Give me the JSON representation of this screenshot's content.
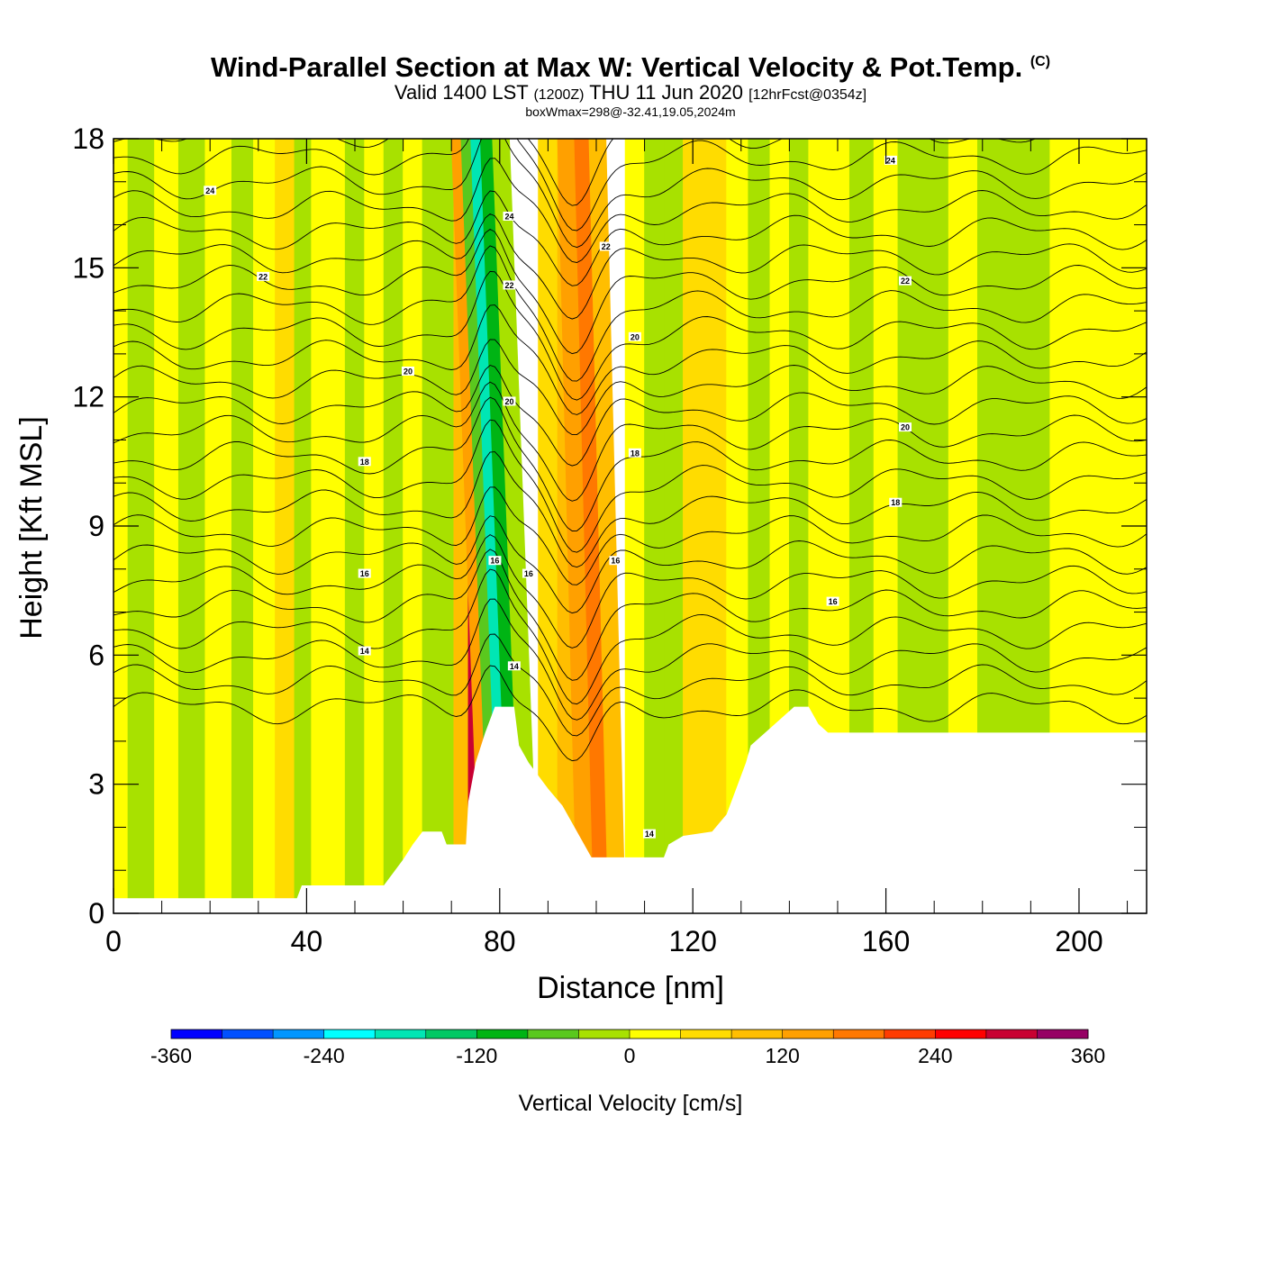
{
  "title": {
    "main": "Wind-Parallel Section at Max W: Vertical Velocity & Pot.Temp.",
    "copyright": "(C)",
    "valid_prefix": "Valid 1400 LST",
    "valid_utc": "(1200Z)",
    "valid_date": "THU 11 Jun 2020",
    "forecast": "[12hrFcst@0354z]",
    "box_info": "boxWmax=298@-32.41,19.05,2024m"
  },
  "chart_data": {
    "type": "heatmap",
    "xlabel": "Distance [nm]",
    "ylabel": "Height [Kft MSL]",
    "xlim": [
      0,
      214
    ],
    "ylim": [
      0,
      18
    ],
    "x_ticks": [
      0,
      40,
      80,
      120,
      160,
      200
    ],
    "x_tick_labels": [
      "0",
      "40",
      "80",
      "120",
      "160",
      "200"
    ],
    "y_ticks": [
      0,
      3,
      6,
      9,
      12,
      15,
      18
    ],
    "y_tick_labels": [
      "0",
      "3",
      "6",
      "9",
      "12",
      "15",
      "18"
    ],
    "colorbar": {
      "title": "Vertical Velocity [cm/s]",
      "levels": [
        -360,
        -330,
        -300,
        -270,
        -240,
        -210,
        -180,
        -150,
        -120,
        -90,
        -60,
        -30,
        0,
        30,
        60,
        90,
        120,
        150,
        180,
        210,
        240,
        270,
        300,
        330,
        360
      ],
      "colors": [
        "#0000ff",
        "#0050ff",
        "#0096ff",
        "#00ffff",
        "#00e6b4",
        "#00c864",
        "#00b414",
        "#5ac81e",
        "#a8e100",
        "#ffff00",
        "#ffdc00",
        "#ffbe00",
        "#ffa000",
        "#ff7800",
        "#ff3c00",
        "#ff0000",
        "#c80032",
        "#960064"
      ],
      "labels": [
        "-360",
        "-240",
        "-120",
        "0",
        "120",
        "240",
        "360"
      ]
    },
    "terrain_kft": [
      [
        0,
        0.35
      ],
      [
        38,
        0.35
      ],
      [
        39,
        0.65
      ],
      [
        56,
        0.65
      ],
      [
        58,
        0.95
      ],
      [
        60,
        1.25
      ],
      [
        62,
        1.6
      ],
      [
        64,
        1.9
      ],
      [
        68,
        1.9
      ],
      [
        69,
        1.6
      ],
      [
        73,
        1.6
      ],
      [
        73.5,
        2.6
      ],
      [
        75,
        3.5
      ],
      [
        77,
        4.2
      ],
      [
        79,
        4.8
      ],
      [
        83,
        4.8
      ],
      [
        84,
        3.9
      ],
      [
        86,
        3.5
      ],
      [
        88,
        3.2
      ],
      [
        90,
        2.9
      ],
      [
        93,
        2.5
      ],
      [
        95,
        2.1
      ],
      [
        97,
        1.7
      ],
      [
        99,
        1.3
      ],
      [
        107,
        1.3
      ],
      [
        114,
        1.3
      ],
      [
        115,
        1.6
      ],
      [
        118,
        1.8
      ],
      [
        124,
        1.9
      ],
      [
        127,
        2.3
      ],
      [
        129,
        2.9
      ],
      [
        131,
        3.5
      ],
      [
        132,
        3.9
      ],
      [
        135,
        4.2
      ],
      [
        138,
        4.5
      ],
      [
        141,
        4.8
      ],
      [
        144,
        4.8
      ],
      [
        146,
        4.4
      ],
      [
        148,
        4.2
      ],
      [
        214,
        4.2
      ]
    ],
    "w_columns": [
      {
        "x": 0,
        "w": 15
      },
      {
        "x": 6,
        "w": -25
      },
      {
        "x": 11,
        "w": 15
      },
      {
        "x": 16,
        "w": -20
      },
      {
        "x": 22,
        "w": 10
      },
      {
        "x": 27,
        "w": -30
      },
      {
        "x": 31,
        "w": 10
      },
      {
        "x": 36,
        "w": 30
      },
      {
        "x": 39,
        "w": -15
      },
      {
        "x": 43,
        "w": 5
      },
      {
        "x": 46,
        "w": 25
      },
      {
        "x": 50,
        "w": -20
      },
      {
        "x": 54,
        "w": 5
      },
      {
        "x": 58,
        "w": -15
      },
      {
        "x": 62,
        "w": 15
      },
      {
        "x": 66,
        "w": -50
      },
      {
        "x": 69,
        "w": -80
      },
      {
        "x": 72,
        "w": 60
      },
      {
        "x": 75,
        "w": 298
      },
      {
        "x": 77,
        "w": 100
      },
      {
        "x": 79,
        "w": -130
      },
      {
        "x": 81,
        "w": -230
      },
      {
        "x": 83,
        "w": -180
      },
      {
        "x": 86,
        "w": -60
      },
      {
        "x": 90,
        "w": 30
      },
      {
        "x": 94,
        "w": 60
      },
      {
        "x": 98,
        "w": 90
      },
      {
        "x": 101,
        "w": 130
      },
      {
        "x": 104,
        "w": 70
      },
      {
        "x": 108,
        "w": 20
      },
      {
        "x": 112,
        "w": -40
      },
      {
        "x": 116,
        "w": -60
      },
      {
        "x": 120,
        "w": 30
      },
      {
        "x": 125,
        "w": 50
      },
      {
        "x": 129,
        "w": 10
      },
      {
        "x": 134,
        "w": -30
      },
      {
        "x": 138,
        "w": 20
      },
      {
        "x": 142,
        "w": -10
      },
      {
        "x": 146,
        "w": 25
      },
      {
        "x": 150,
        "w": 5
      },
      {
        "x": 155,
        "w": -10
      },
      {
        "x": 160,
        "w": 15
      },
      {
        "x": 165,
        "w": -25
      },
      {
        "x": 170,
        "w": -10
      },
      {
        "x": 176,
        "w": 5
      },
      {
        "x": 182,
        "w": -15
      },
      {
        "x": 190,
        "w": -10
      },
      {
        "x": 198,
        "w": 5
      },
      {
        "x": 205,
        "w": 20
      },
      {
        "x": 214,
        "w": 10
      }
    ],
    "contour_labels": [
      {
        "text": "24",
        "x": 20,
        "y": 16.8
      },
      {
        "text": "24",
        "x": 82,
        "y": 16.2
      },
      {
        "text": "24",
        "x": 161,
        "y": 17.5
      },
      {
        "text": "22",
        "x": 31,
        "y": 14.8
      },
      {
        "text": "22",
        "x": 82,
        "y": 14.6
      },
      {
        "text": "22",
        "x": 102,
        "y": 15.5
      },
      {
        "text": "22",
        "x": 164,
        "y": 14.7
      },
      {
        "text": "20",
        "x": 61,
        "y": 12.6
      },
      {
        "text": "20",
        "x": 82,
        "y": 11.9
      },
      {
        "text": "20",
        "x": 108,
        "y": 13.4
      },
      {
        "text": "20",
        "x": 164,
        "y": 11.3
      },
      {
        "text": "18",
        "x": 52,
        "y": 10.5
      },
      {
        "text": "18",
        "x": 108,
        "y": 10.7
      },
      {
        "text": "18",
        "x": 162,
        "y": 9.55
      },
      {
        "text": "16",
        "x": 52,
        "y": 7.9
      },
      {
        "text": "16",
        "x": 79,
        "y": 8.2
      },
      {
        "text": "16",
        "x": 86,
        "y": 7.9
      },
      {
        "text": "16",
        "x": 104,
        "y": 8.2
      },
      {
        "text": "16",
        "x": 149,
        "y": 7.25
      },
      {
        "text": "14",
        "x": 52,
        "y": 6.1
      },
      {
        "text": "14",
        "x": 83,
        "y": 5.75
      },
      {
        "text": "14",
        "x": 111,
        "y": 1.85
      }
    ]
  }
}
